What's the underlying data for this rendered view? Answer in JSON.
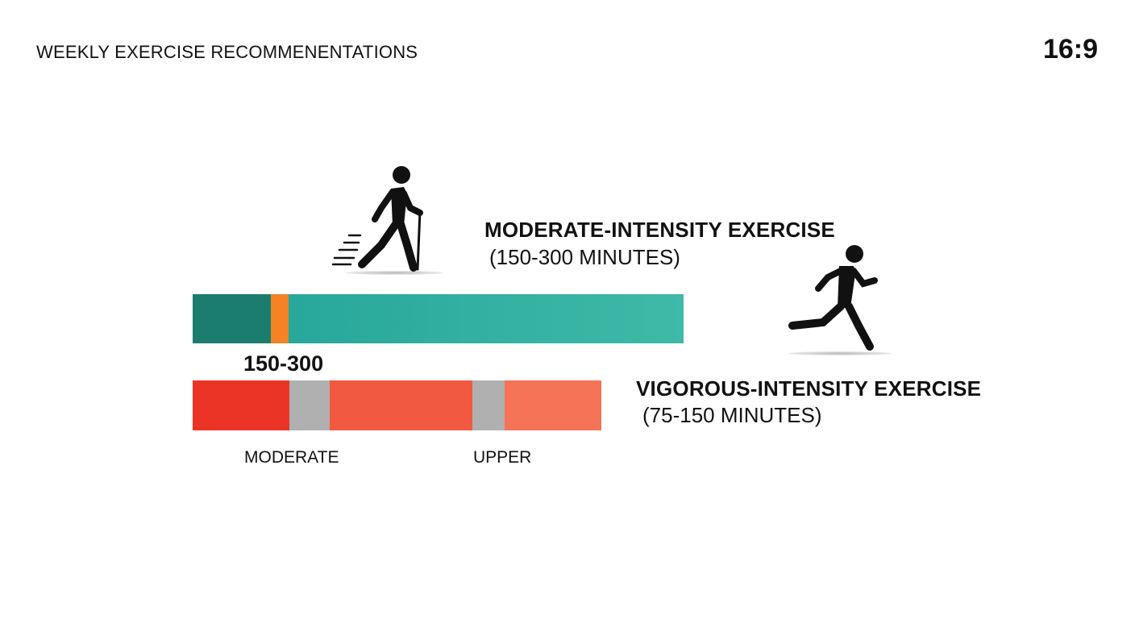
{
  "header": {
    "title": "WEEKLY EXERCISE RECOMMENENTATIONS",
    "aspect_ratio": "16:9"
  },
  "moderate": {
    "heading": "MODERATE-INTENSITY EXERCISE",
    "subheading": "(150-300 MINUTES)",
    "icon": "walking-person-with-pole-icon",
    "bar_segments": [
      {
        "role": "start",
        "color": "#1a7d70",
        "fraction": 0.16
      },
      {
        "role": "marker",
        "color": "#f58225",
        "fraction": 0.035
      },
      {
        "role": "range",
        "color": "#33b5a5",
        "fraction": 0.805
      }
    ],
    "range_label": "150-300"
  },
  "vigorous": {
    "heading": "VIGOROUS-INTENSITY EXERCISE",
    "subheading": "(75-150 MINUTES)",
    "icon": "running-person-icon",
    "bar_segments": [
      {
        "role": "moderate",
        "color": "#ec3426",
        "fraction": 0.236
      },
      {
        "role": "gap",
        "color": "#b0b0b0",
        "fraction": 0.099
      },
      {
        "role": "mid",
        "color": "#f15a40",
        "fraction": 0.349
      },
      {
        "role": "gap",
        "color": "#b0b0b0",
        "fraction": 0.08
      },
      {
        "role": "upper",
        "color": "#f57458",
        "fraction": 0.236
      }
    ],
    "scale_labels": {
      "moderate": "MODERATE",
      "upper": "UPPER"
    }
  }
}
